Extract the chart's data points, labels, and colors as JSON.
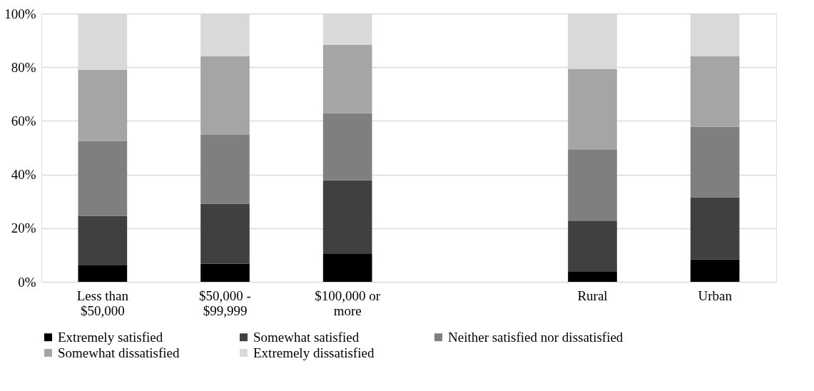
{
  "chart_data": {
    "type": "bar",
    "stacked": true,
    "categories": [
      "Less than $50,000",
      "$50,000 - $99,999",
      "$100,000 or more",
      null,
      "Rural",
      "Urban"
    ],
    "series": [
      {
        "name": "Extremely satisfied",
        "color": "#000000",
        "values": [
          6.3,
          6.8,
          10.4,
          null,
          3.9,
          8.4
        ]
      },
      {
        "name": "Somewhat satisfied",
        "color": "#404040",
        "values": [
          18.3,
          22.3,
          27.4,
          null,
          18.9,
          23.1
        ]
      },
      {
        "name": "Neither satisfied nor dissatisfied",
        "color": "#7f7f7f",
        "values": [
          27.9,
          25.7,
          25.0,
          null,
          26.6,
          26.3
        ]
      },
      {
        "name": "Somewhat dissatisfied",
        "color": "#a5a5a5",
        "values": [
          26.5,
          29.3,
          25.5,
          null,
          30.0,
          26.3
        ]
      },
      {
        "name": "Extremely dissatisfied",
        "color": "#d9d9d9",
        "values": [
          21.0,
          15.9,
          11.7,
          null,
          20.6,
          15.9
        ]
      }
    ],
    "ylim": [
      0,
      100
    ],
    "yticks": [
      {
        "value": 0,
        "label": "0%"
      },
      {
        "value": 20,
        "label": "20%"
      },
      {
        "value": 40,
        "label": "40%"
      },
      {
        "value": 60,
        "label": "60%"
      },
      {
        "value": 80,
        "label": "80%"
      },
      {
        "value": 100,
        "label": "100%"
      }
    ],
    "grid": "y",
    "legend": "bottom"
  }
}
